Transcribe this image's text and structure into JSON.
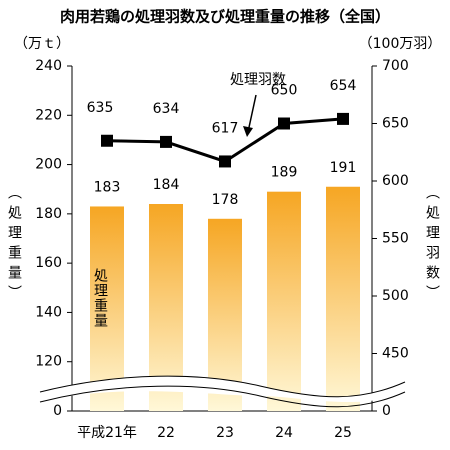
{
  "chart_data": {
    "type": "bar",
    "title": "肉用若鶏の処理羽数及び処理重量の推移（全国）",
    "y_unit": "（万ｔ）",
    "y2_unit": "（100万羽）",
    "y_label": "（処理重量）",
    "y2_label": "（処理羽数）",
    "categories": [
      "平成21年",
      "22",
      "23",
      "24",
      "25"
    ],
    "series": [
      {
        "name": "処理重量",
        "type": "bar",
        "color": "#f6a623",
        "values": [
          183,
          184,
          178,
          189,
          191
        ]
      },
      {
        "name": "処理羽数",
        "type": "line",
        "axis": "y2",
        "color": "#000000",
        "values": [
          635,
          634,
          617,
          650,
          654
        ]
      }
    ],
    "ylim": [
      0,
      240
    ],
    "yticks": [
      0,
      120,
      140,
      160,
      180,
      200,
      220,
      240
    ],
    "y2lim": [
      0,
      700
    ],
    "y2ticks": [
      0,
      450,
      500,
      550,
      600,
      650,
      700
    ],
    "axis_break": true
  }
}
